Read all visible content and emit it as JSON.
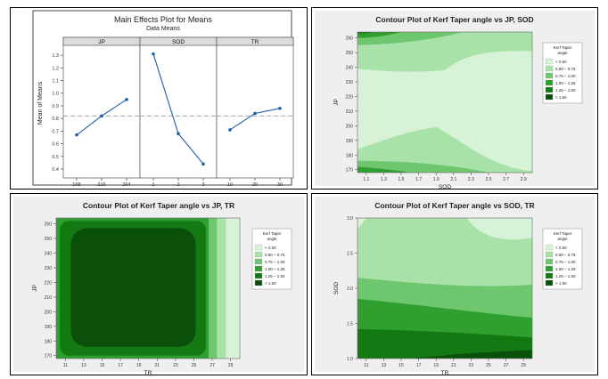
{
  "chart_data": [
    {
      "type": "line",
      "title": "Main Effects Plot for Means",
      "subtitle": "Data Means",
      "ylabel": "Mean of Means",
      "ylim": [
        0.4,
        1.35
      ],
      "yticks": [
        "0.4",
        "0.5",
        "0.6",
        "0.7",
        "0.8",
        "0.9",
        "1.0",
        "1.1",
        "1.2",
        "1.3"
      ],
      "reference_line": 0.82,
      "panels": [
        {
          "name": "JP",
          "categories": [
            "168",
            "216",
            "264"
          ],
          "values": [
            0.67,
            0.82,
            0.95
          ]
        },
        {
          "name": "SOD",
          "categories": [
            "1",
            "2",
            "3"
          ],
          "values": [
            1.31,
            0.68,
            0.44
          ]
        },
        {
          "name": "TR",
          "categories": [
            "10",
            "20",
            "30"
          ],
          "values": [
            0.71,
            0.84,
            0.88
          ]
        }
      ],
      "colors": {
        "line": "#1f5ea8",
        "reference": "#999999",
        "panel_header": "#dcdcdc"
      }
    },
    {
      "type": "contour",
      "title": "Contour Plot of Kerf Taper angle vs JP, SOD",
      "xlabel": "SOD",
      "ylabel": "JP",
      "xlim": [
        1.0,
        3.0
      ],
      "ylim": [
        168,
        264
      ],
      "xticks": [
        "1.1",
        "1.3",
        "1.5",
        "1.7",
        "1.9",
        "2.1",
        "2.3",
        "2.5",
        "2.7",
        "2.9"
      ],
      "yticks": [
        "170",
        "180",
        "190",
        "200",
        "210",
        "220",
        "230",
        "240",
        "250",
        "260"
      ],
      "legend_title": [
        "Kerf Taper",
        "angle"
      ]
    },
    {
      "type": "contour",
      "title": "Contour Plot of Kerf Taper angle vs JP, TR",
      "xlabel": "TR",
      "ylabel": "JP",
      "xlim": [
        10,
        30
      ],
      "ylim": [
        168,
        264
      ],
      "xticks": [
        "11",
        "13",
        "15",
        "17",
        "19",
        "21",
        "23",
        "25",
        "27",
        "29"
      ],
      "yticks": [
        "170",
        "180",
        "190",
        "200",
        "210",
        "220",
        "230",
        "240",
        "250",
        "260"
      ],
      "legend_title": [
        "Kerf Taper",
        "angle"
      ]
    },
    {
      "type": "contour",
      "title": "Contour Plot of Kerf Taper angle vs SOD, TR",
      "xlabel": "TR",
      "ylabel": "SOD",
      "xlim": [
        10,
        30
      ],
      "ylim": [
        1.0,
        3.0
      ],
      "xticks": [
        "11",
        "13",
        "15",
        "17",
        "19",
        "21",
        "23",
        "25",
        "27",
        "29"
      ],
      "yticks": [
        "1.0",
        "1.5",
        "2.0",
        "2.5",
        "3.0"
      ],
      "legend_title": [
        "Kerf Taper",
        "angle"
      ]
    }
  ],
  "legend_levels": [
    {
      "label": "<  0.50",
      "color": "#d8f2d8"
    },
    {
      "label": "0.50 – 0.75",
      "color": "#a9e2a9"
    },
    {
      "label": "0.75 – 1.00",
      "color": "#6ec66e"
    },
    {
      "label": "1.00 – 1.25",
      "color": "#2f9f2f"
    },
    {
      "label": "1.25 – 1.50",
      "color": "#137a13"
    },
    {
      "label": ">  1.50",
      "color": "#0a4f0a"
    }
  ]
}
